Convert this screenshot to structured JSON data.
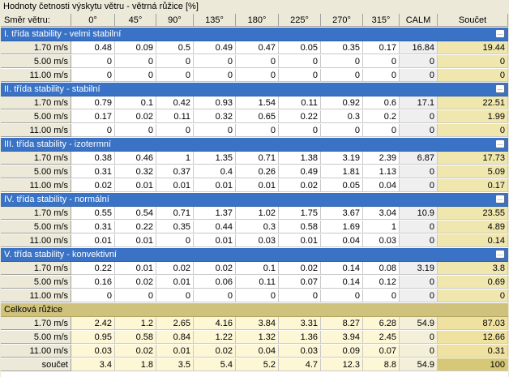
{
  "title": "Hodnoty četnosti výskytu větru - větrná růžice  [%]",
  "header": [
    "Směr větru:",
    "0°",
    "45°",
    "90°",
    "135°",
    "180°",
    "225°",
    "270°",
    "315°",
    "CALM",
    "Součet"
  ],
  "sections": [
    {
      "label": "I. třída stability - velmi stabilní",
      "rows": [
        {
          "label": "1.70 m/s",
          "values": [
            "0.48",
            "0.09",
            "0.5",
            "0.49",
            "0.47",
            "0.05",
            "0.35",
            "0.17",
            "16.84",
            "19.44"
          ]
        },
        {
          "label": "5.00 m/s",
          "values": [
            "0",
            "0",
            "0",
            "0",
            "0",
            "0",
            "0",
            "0",
            "0",
            "0"
          ]
        },
        {
          "label": "11.00 m/s",
          "values": [
            "0",
            "0",
            "0",
            "0",
            "0",
            "0",
            "0",
            "0",
            "0",
            "0"
          ]
        }
      ]
    },
    {
      "label": "II. třída stability - stabilní",
      "rows": [
        {
          "label": "1.70 m/s",
          "values": [
            "0.79",
            "0.1",
            "0.42",
            "0.93",
            "1.54",
            "0.11",
            "0.92",
            "0.6",
            "17.1",
            "22.51"
          ]
        },
        {
          "label": "5.00 m/s",
          "values": [
            "0.17",
            "0.02",
            "0.11",
            "0.32",
            "0.65",
            "0.22",
            "0.3",
            "0.2",
            "0",
            "1.99"
          ]
        },
        {
          "label": "11.00 m/s",
          "values": [
            "0",
            "0",
            "0",
            "0",
            "0",
            "0",
            "0",
            "0",
            "0",
            "0"
          ]
        }
      ]
    },
    {
      "label": "III. třída stability - izotermní",
      "rows": [
        {
          "label": "1.70 m/s",
          "values": [
            "0.38",
            "0.46",
            "1",
            "1.35",
            "0.71",
            "1.38",
            "3.19",
            "2.39",
            "6.87",
            "17.73"
          ]
        },
        {
          "label": "5.00 m/s",
          "values": [
            "0.31",
            "0.32",
            "0.37",
            "0.4",
            "0.26",
            "0.49",
            "1.81",
            "1.13",
            "0",
            "5.09"
          ]
        },
        {
          "label": "11.00 m/s",
          "values": [
            "0.02",
            "0.01",
            "0.01",
            "0.01",
            "0.01",
            "0.02",
            "0.05",
            "0.04",
            "0",
            "0.17"
          ]
        }
      ]
    },
    {
      "label": "IV. třída stability - normální",
      "rows": [
        {
          "label": "1.70 m/s",
          "values": [
            "0.55",
            "0.54",
            "0.71",
            "1.37",
            "1.02",
            "1.75",
            "3.67",
            "3.04",
            "10.9",
            "23.55"
          ]
        },
        {
          "label": "5.00 m/s",
          "values": [
            "0.31",
            "0.22",
            "0.35",
            "0.44",
            "0.3",
            "0.58",
            "1.69",
            "1",
            "0",
            "4.89"
          ]
        },
        {
          "label": "11.00 m/s",
          "values": [
            "0.01",
            "0.01",
            "0",
            "0.01",
            "0.03",
            "0.01",
            "0.04",
            "0.03",
            "0",
            "0.14"
          ]
        }
      ]
    },
    {
      "label": "V. třída stability - konvektivní",
      "rows": [
        {
          "label": "1.70 m/s",
          "values": [
            "0.22",
            "0.01",
            "0.02",
            "0.02",
            "0.1",
            "0.02",
            "0.14",
            "0.08",
            "3.19",
            "3.8"
          ]
        },
        {
          "label": "5.00 m/s",
          "values": [
            "0.16",
            "0.02",
            "0.01",
            "0.06",
            "0.11",
            "0.07",
            "0.14",
            "0.12",
            "0",
            "0.69"
          ]
        },
        {
          "label": "11.00 m/s",
          "values": [
            "0",
            "0",
            "0",
            "0",
            "0",
            "0",
            "0",
            "0",
            "0",
            "0"
          ]
        }
      ]
    }
  ],
  "total": {
    "label": "Celková růžice",
    "rows": [
      {
        "label": "1.70 m/s",
        "values": [
          "2.42",
          "1.2",
          "2.65",
          "4.16",
          "3.84",
          "3.31",
          "8.27",
          "6.28",
          "54.9",
          "87.03"
        ]
      },
      {
        "label": "5.00 m/s",
        "values": [
          "0.95",
          "0.58",
          "0.84",
          "1.22",
          "1.32",
          "1.36",
          "3.94",
          "2.45",
          "0",
          "12.66"
        ]
      },
      {
        "label": "11.00 m/s",
        "values": [
          "0.03",
          "0.02",
          "0.01",
          "0.02",
          "0.04",
          "0.03",
          "0.09",
          "0.07",
          "0",
          "0.31"
        ]
      },
      {
        "label": "součet",
        "values": [
          "3.4",
          "1.8",
          "3.5",
          "5.4",
          "5.2",
          "4.7",
          "12.3",
          "8.8",
          "54.9",
          "100"
        ]
      }
    ]
  },
  "section_button_glyph": "…",
  "icons": {
    "section_button": "ellipsis-icon"
  }
}
